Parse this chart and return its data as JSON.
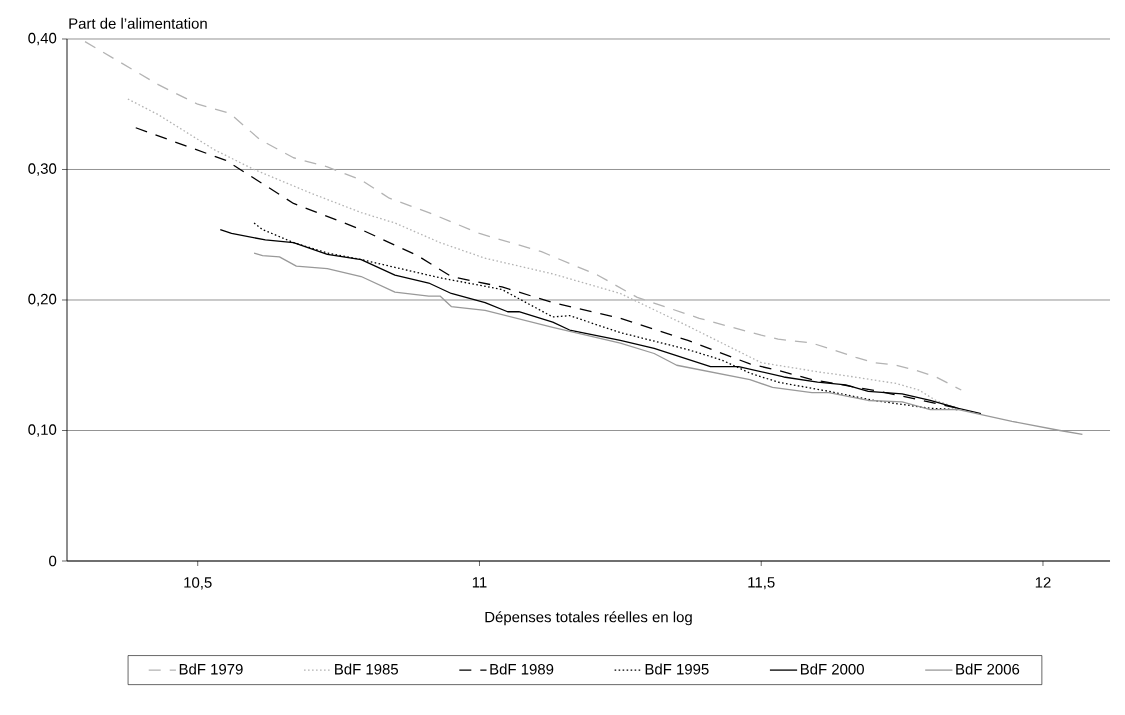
{
  "chart_data": {
    "type": "line",
    "xlabel": "Dépenses totales réelles en log",
    "ylabel": "Part de l’alimentation",
    "xlim": [
      10.268,
      12.119
    ],
    "ylim": [
      0,
      0.4
    ],
    "xticks": [
      {
        "value": 10.5,
        "label": "10,5"
      },
      11,
      {
        "value": 11.5,
        "label": "11,5"
      },
      12
    ],
    "yticks": [
      0,
      {
        "value": 0.1,
        "label": "0,10"
      },
      {
        "value": 0.2,
        "label": "0,20"
      },
      {
        "value": 0.3,
        "label": "0,30"
      },
      {
        "value": 0.4,
        "label": "0,40"
      }
    ],
    "grid": "y",
    "legend": "bottom",
    "series": [
      {
        "name": "BdF 1979",
        "color": "#b3b3b3",
        "line_style": "dashed",
        "x": [
          10.3,
          10.43,
          10.5,
          10.557,
          10.61,
          10.67,
          10.73,
          10.79,
          10.84,
          10.91,
          11.0,
          11.11,
          11.21,
          11.28,
          11.39,
          11.5,
          11.53,
          11.59,
          11.626,
          11.668,
          11.7,
          11.74,
          11.775,
          11.81,
          11.855
        ],
        "values": [
          0.398,
          0.365,
          0.35,
          0.343,
          0.323,
          0.309,
          0.302,
          0.292,
          0.278,
          0.267,
          0.251,
          0.237,
          0.219,
          0.202,
          0.186,
          0.173,
          0.17,
          0.167,
          0.162,
          0.156,
          0.152,
          0.15,
          0.146,
          0.141,
          0.131
        ]
      },
      {
        "name": "BdF 1985",
        "color": "#b3b3b3",
        "line_style": "dotted",
        "x": [
          10.376,
          10.43,
          10.53,
          10.6,
          10.7,
          10.79,
          10.85,
          10.93,
          11.01,
          11.13,
          11.25,
          11.37,
          11.5,
          11.6,
          11.65,
          11.74,
          11.78,
          11.81,
          11.85
        ],
        "values": [
          0.354,
          0.342,
          0.315,
          0.3,
          0.282,
          0.267,
          0.259,
          0.244,
          0.232,
          0.22,
          0.205,
          0.18,
          0.152,
          0.145,
          0.142,
          0.136,
          0.131,
          0.123,
          0.117
        ]
      },
      {
        "name": "BdF 1989",
        "color": "#000000",
        "line_style": "dashed",
        "x": [
          10.39,
          10.55,
          10.67,
          10.79,
          10.89,
          10.95,
          11.04,
          11.13,
          11.25,
          11.37,
          11.48,
          11.53,
          11.59,
          11.71,
          11.85
        ],
        "values": [
          0.332,
          0.307,
          0.274,
          0.254,
          0.234,
          0.218,
          0.21,
          0.198,
          0.186,
          0.169,
          0.151,
          0.146,
          0.139,
          0.13,
          0.117
        ]
      },
      {
        "name": "BdF 1995",
        "color": "#000000",
        "line_style": "dotted",
        "x": [
          10.6,
          10.615,
          10.67,
          10.73,
          10.79,
          10.85,
          10.93,
          11.04,
          11.13,
          11.16,
          11.25,
          11.37,
          11.43,
          11.48,
          11.53,
          11.62,
          11.7,
          11.8,
          11.85
        ],
        "values": [
          0.259,
          0.254,
          0.244,
          0.236,
          0.231,
          0.225,
          0.217,
          0.208,
          0.187,
          0.188,
          0.175,
          0.162,
          0.154,
          0.144,
          0.137,
          0.13,
          0.123,
          0.117,
          0.116
        ]
      },
      {
        "name": "BdF 2000",
        "color": "#000000",
        "line_style": "solid",
        "x": [
          10.54,
          10.56,
          10.62,
          10.67,
          10.73,
          10.79,
          10.85,
          10.91,
          10.95,
          11.01,
          11.05,
          11.07,
          11.13,
          11.16,
          11.25,
          11.31,
          11.41,
          11.46,
          11.54,
          11.6,
          11.65,
          11.69,
          11.75,
          11.8,
          11.85,
          11.89
        ],
        "values": [
          0.254,
          0.251,
          0.246,
          0.244,
          0.235,
          0.231,
          0.219,
          0.213,
          0.205,
          0.198,
          0.191,
          0.191,
          0.183,
          0.177,
          0.169,
          0.163,
          0.149,
          0.149,
          0.141,
          0.137,
          0.135,
          0.13,
          0.128,
          0.123,
          0.117,
          0.113
        ]
      },
      {
        "name": "BdF 2006",
        "color": "#999999",
        "line_style": "solid",
        "x": [
          10.6,
          10.615,
          10.645,
          10.675,
          10.73,
          10.79,
          10.85,
          10.91,
          10.93,
          10.95,
          11.01,
          11.13,
          11.25,
          11.31,
          11.35,
          11.48,
          11.52,
          11.59,
          11.62,
          11.69,
          11.75,
          11.8,
          11.85,
          11.945,
          12.03,
          12.07
        ],
        "values": [
          0.236,
          0.234,
          0.233,
          0.226,
          0.224,
          0.218,
          0.206,
          0.203,
          0.203,
          0.195,
          0.192,
          0.179,
          0.167,
          0.159,
          0.15,
          0.139,
          0.133,
          0.129,
          0.129,
          0.123,
          0.122,
          0.116,
          0.116,
          0.107,
          0.1,
          0.097
        ]
      }
    ]
  }
}
